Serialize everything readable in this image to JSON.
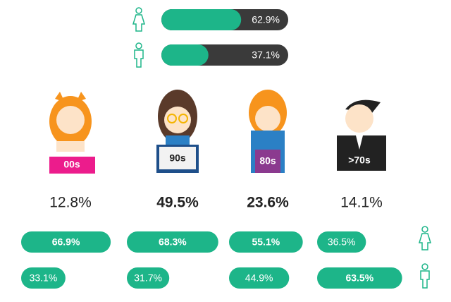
{
  "chart_data": {
    "type": "infographic",
    "gender": {
      "values": [
        62.9,
        37.1
      ],
      "value_labels": [
        "62.9%",
        "37.1%"
      ],
      "color": "#1db589",
      "track_color": "#3a3a3a"
    },
    "generations": {
      "categories": [
        "00s",
        "90s",
        "80s",
        ">70s"
      ],
      "shares": [
        12.8,
        49.5,
        23.6,
        14.1
      ],
      "share_labels": [
        "12.8%",
        "49.5%",
        "23.6%",
        "14.1%"
      ],
      "emphasis": [
        false,
        true,
        true,
        false
      ],
      "female": [
        66.9,
        68.3,
        55.1,
        36.5
      ],
      "female_labels": [
        "66.9%",
        "68.3%",
        "55.1%",
        "36.5%"
      ],
      "male": [
        33.1,
        31.7,
        44.9,
        63.5
      ],
      "male_labels": [
        "33.1%",
        "31.7%",
        "44.9%",
        "63.5%"
      ],
      "color": "#1db589"
    }
  }
}
